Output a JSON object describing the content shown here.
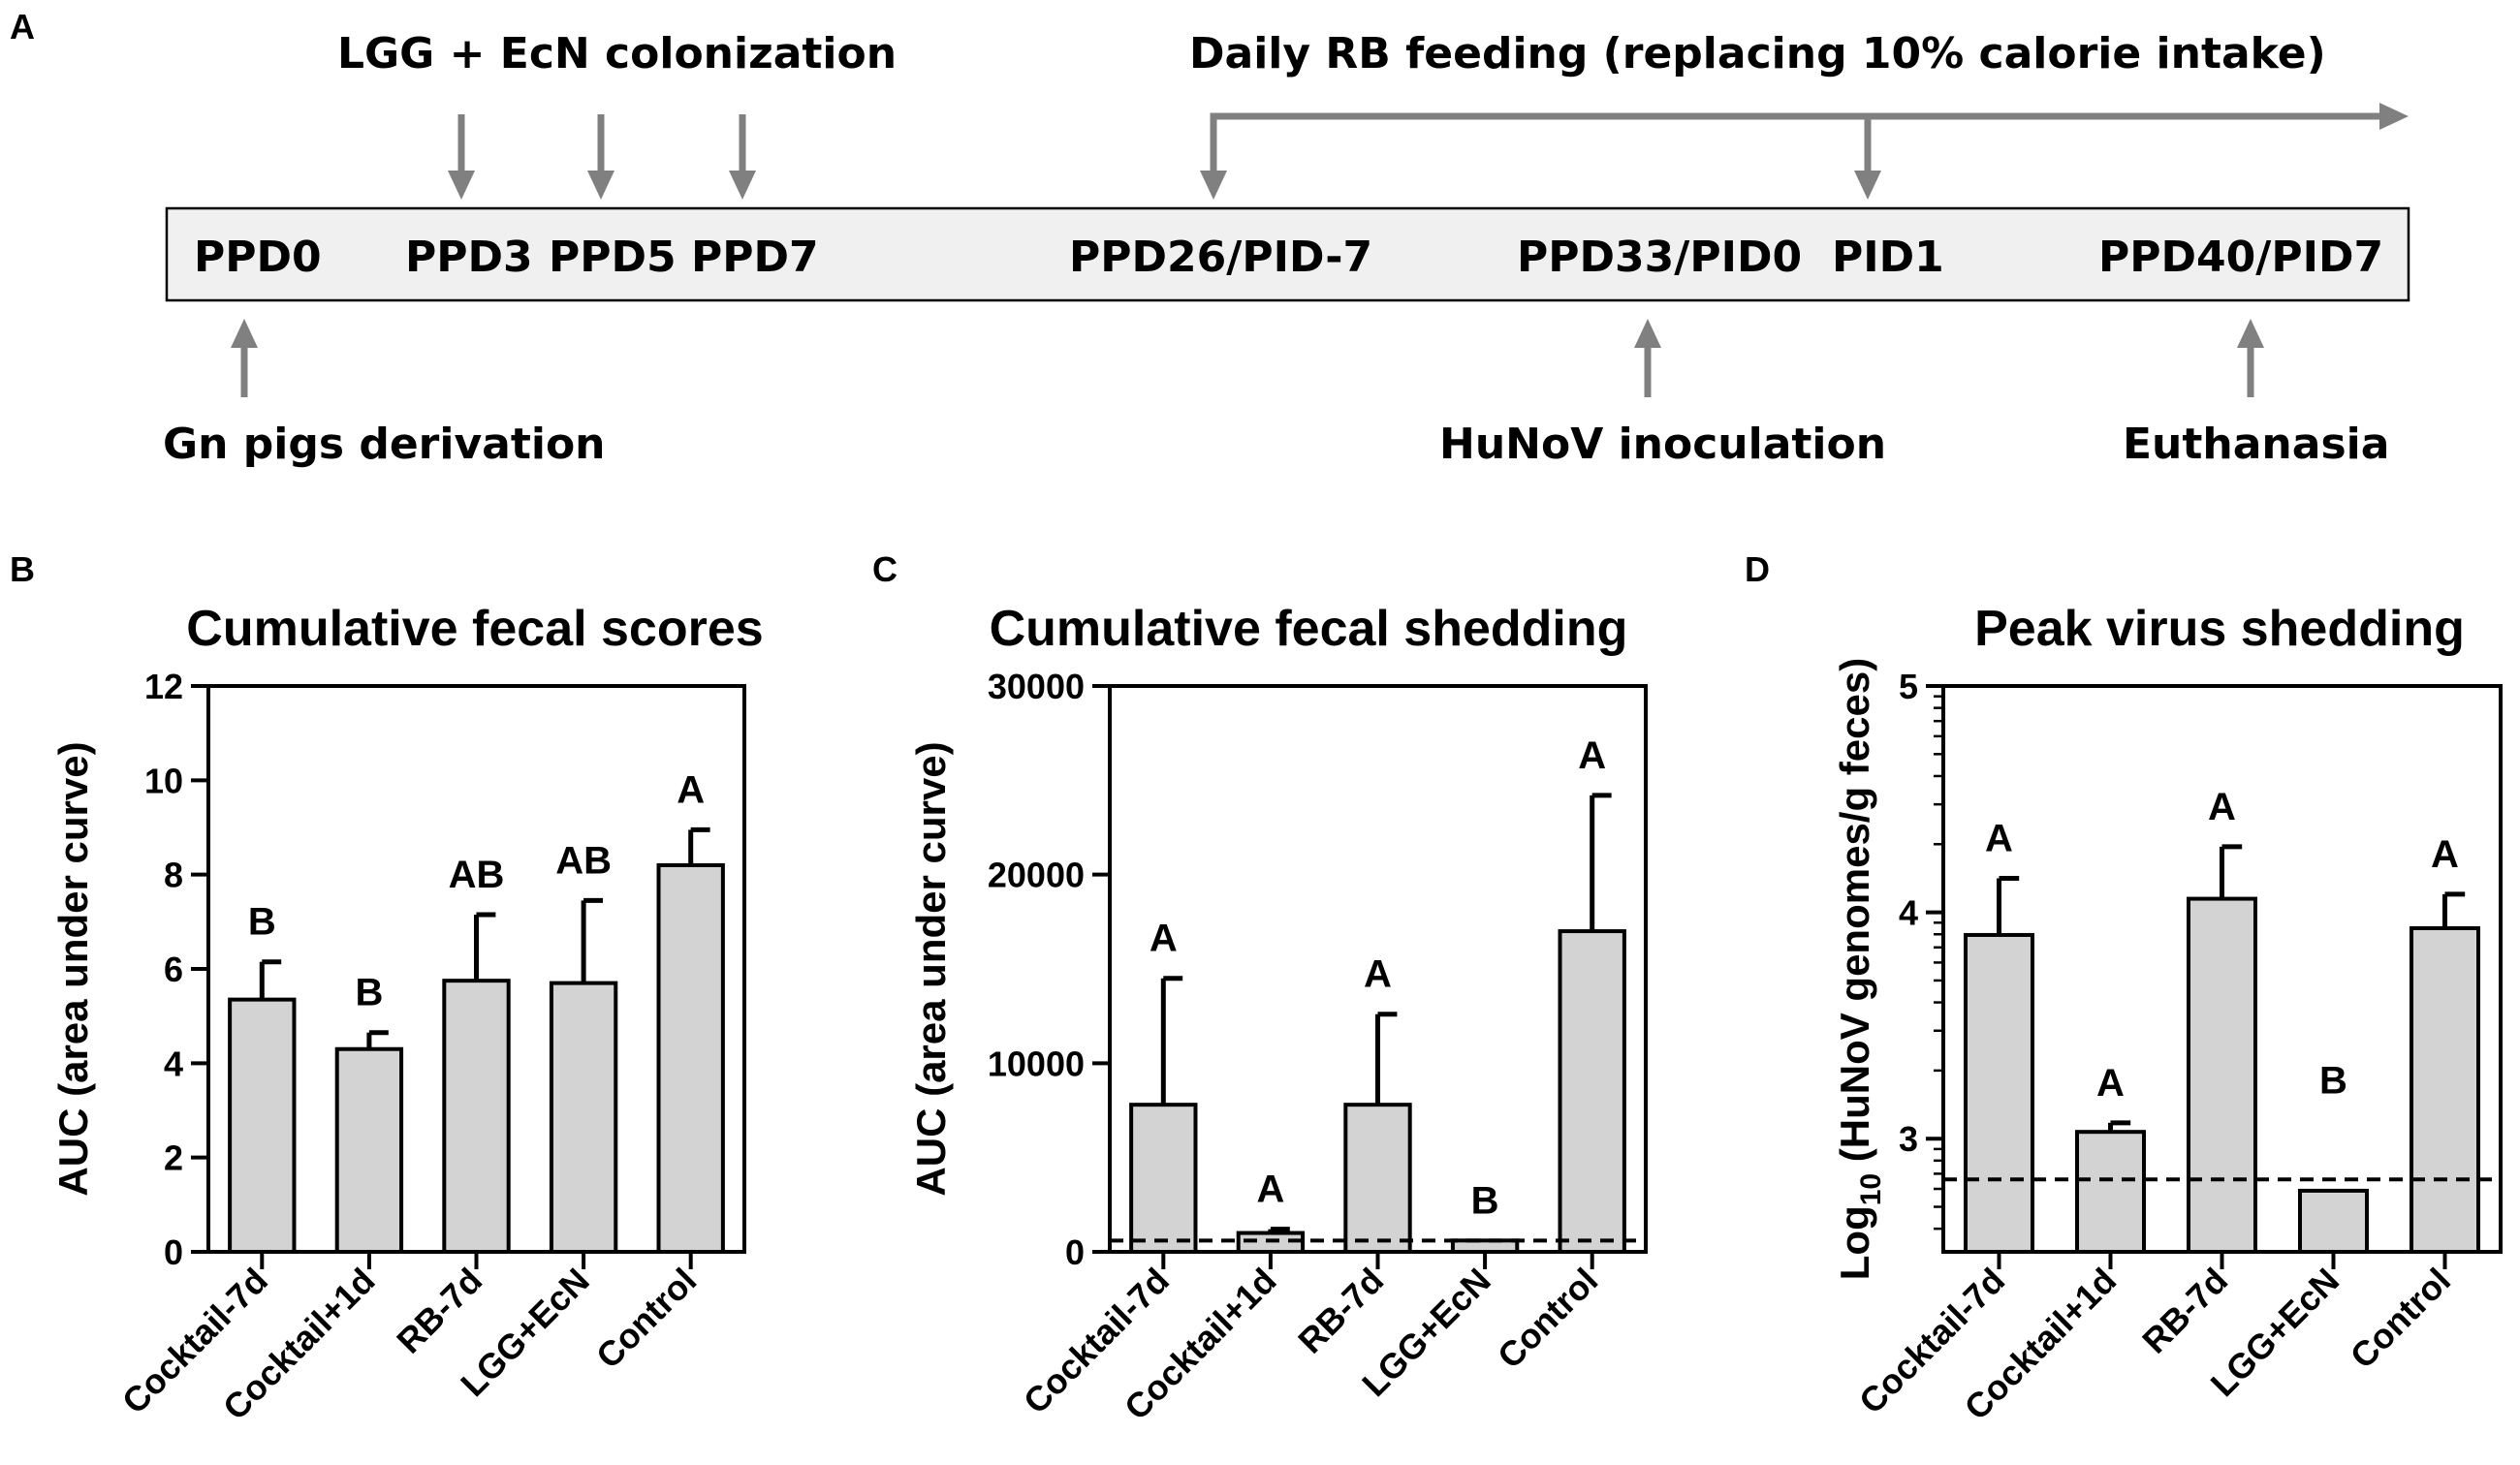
{
  "panel_letters": {
    "a": "A",
    "b": "B",
    "c": "C",
    "d": "D"
  },
  "timeline": {
    "top_labels": {
      "colonization": "LGG + EcN colonization",
      "feeding": "Daily RB feeding (replacing 10% calorie intake)"
    },
    "days": [
      "PPD0",
      "PPD3",
      "PPD5",
      "PPD7",
      "PPD26/PID-7",
      "PPD33/PID0",
      "PID1",
      "PPD40/PID7"
    ],
    "bottom_labels": {
      "derivation": "Gn pigs derivation",
      "inoculation": "HuNoV inoculation",
      "euthanasia": "Euthanasia"
    },
    "colors": {
      "box_fill": "#f0f0f0",
      "arrow": "#808080"
    }
  },
  "chart_data": [
    {
      "type": "bar",
      "panel": "B",
      "title": "Cumulative fecal scores",
      "ylabel": "AUC (area under curve)",
      "xlabel": "",
      "categories": [
        "Cocktail-7d",
        "Cocktail+1d",
        "RB-7d",
        "LGG+EcN",
        "Control"
      ],
      "values": [
        5.35,
        4.3,
        5.75,
        5.7,
        8.2
      ],
      "errors": [
        0.8,
        0.35,
        1.4,
        1.75,
        0.75
      ],
      "group_letters": [
        "B",
        "B",
        "AB",
        "AB",
        "A"
      ],
      "ylim": [
        0,
        12
      ],
      "yticks": [
        0,
        2,
        4,
        6,
        8,
        10,
        12
      ],
      "ytick_labels": [
        "0",
        "2",
        "4",
        "6",
        "8",
        "10",
        "12"
      ],
      "bar_color": "#d3d3d3"
    },
    {
      "type": "bar",
      "panel": "C",
      "title": "Cumulative fecal shedding",
      "ylabel": "AUC (area under curve)",
      "xlabel": "",
      "categories": [
        "Cocktail-7d",
        "Cocktail+1d",
        "RB-7d",
        "LGG+EcN",
        "Control"
      ],
      "values": [
        7800,
        1000,
        7800,
        600,
        17000
      ],
      "errors": [
        6700,
        200,
        4800,
        0,
        7200
      ],
      "group_letters": [
        "A",
        "A",
        "A",
        "B",
        "A"
      ],
      "ylim": [
        0,
        30000
      ],
      "yticks": [
        0,
        10000,
        20000,
        30000
      ],
      "ytick_labels": [
        "0",
        "10000",
        "20000",
        "30000"
      ],
      "dashed_line": 600,
      "bar_color": "#d3d3d3"
    },
    {
      "type": "bar",
      "panel": "D",
      "title": "Peak virus shedding",
      "ylabel_parts": [
        "Log",
        "10",
        " (HuNoV genomes/g feces)"
      ],
      "xlabel": "",
      "categories": [
        "Cocktail-7d",
        "Cocktail+1d",
        "RB-7d",
        "LGG+EcN",
        "Control"
      ],
      "values": [
        3.9,
        3.03,
        4.06,
        2.77,
        3.93
      ],
      "errors": [
        0.25,
        0.04,
        0.23,
        0,
        0.15
      ],
      "group_letters": [
        "A",
        "A",
        "A",
        "B",
        "A"
      ],
      "ylim": [
        2.5,
        5
      ],
      "yticks": [
        3,
        4,
        5
      ],
      "ytick_labels": [
        "3",
        "4",
        "5"
      ],
      "dashed_line": 2.82,
      "bar_color": "#d3d3d3"
    }
  ]
}
